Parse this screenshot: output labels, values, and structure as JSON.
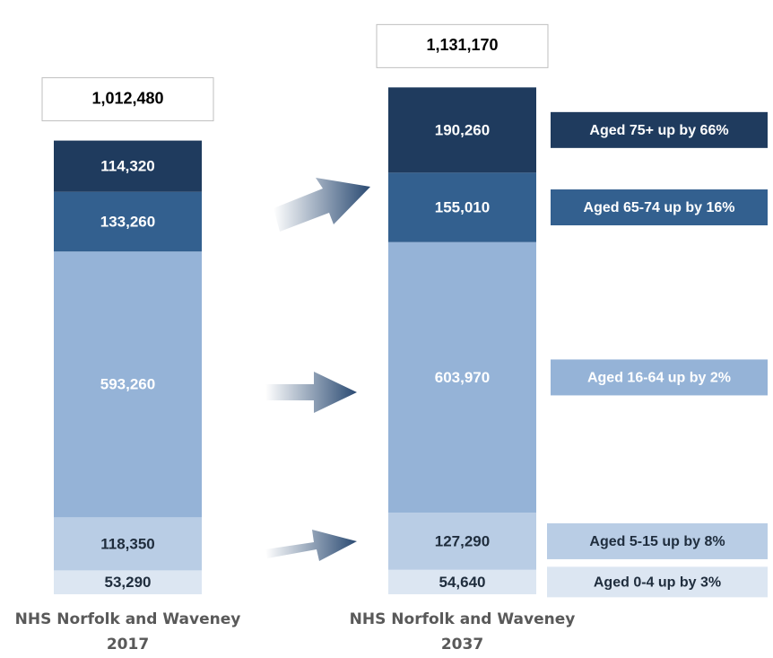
{
  "chart_data": {
    "type": "bar",
    "stacked": true,
    "categories": [
      "NHS Norfolk and Waveney 2017",
      "NHS Norfolk and Waveney 2037"
    ],
    "ylim": [
      0,
      1200000
    ],
    "series": [
      {
        "name": "Aged 0-4",
        "color": "#dce6f2",
        "text_color": "#1f2d3d",
        "values": [
          53290,
          54640
        ],
        "value_labels": [
          "53,290",
          "54,640"
        ],
        "annotation": "Aged 0-4 up by 3%"
      },
      {
        "name": "Aged 5-15",
        "color": "#b9cde5",
        "text_color": "#1f2d3d",
        "values": [
          118350,
          127290
        ],
        "value_labels": [
          "118,350",
          "127,290"
        ],
        "annotation": "Aged 5-15 up by 8%"
      },
      {
        "name": "Aged 16-64",
        "color": "#95b3d7",
        "text_color": "#ffffff",
        "values": [
          593260,
          603970
        ],
        "value_labels": [
          "593,260",
          "603,970"
        ],
        "annotation": "Aged 16-64 up by 2%"
      },
      {
        "name": "Aged 65-74",
        "color": "#33608f",
        "text_color": "#ffffff",
        "values": [
          133260,
          155010
        ],
        "value_labels": [
          "133,260",
          "155,010"
        ],
        "annotation": "Aged 65-74 up by 16%"
      },
      {
        "name": "Aged 75+",
        "color": "#1f3b5e",
        "text_color": "#ffffff",
        "values": [
          114320,
          190260
        ],
        "value_labels": [
          "114,320",
          "190,260"
        ],
        "annotation": "Aged 75+ up by 66%"
      }
    ],
    "totals": {
      "values": [
        1012480,
        1131170
      ],
      "value_labels": [
        "1,012,480",
        "1,131,170"
      ]
    }
  }
}
